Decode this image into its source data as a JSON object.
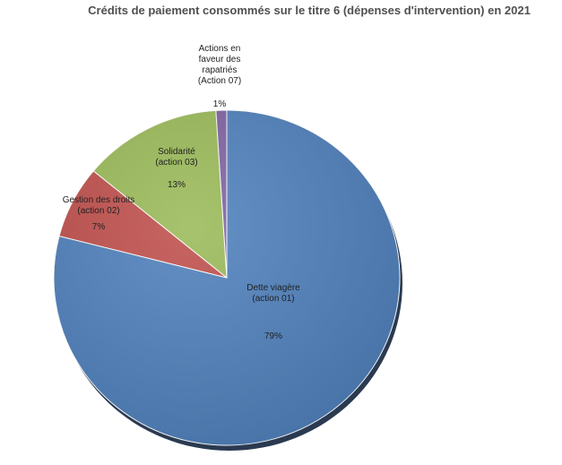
{
  "chart_data": {
    "type": "pie",
    "title": "Crédits de paiement consommés sur le titre 6 (dépenses d'intervention) en 2021",
    "categories": [
      "Dette viagère (action 01)",
      "Gestion des droits (action 02)",
      "Solidarité (action 03)",
      "Actions en faveur des rapatriés (Action 07)"
    ],
    "values": [
      79,
      7,
      13,
      1
    ],
    "value_labels": [
      "79%",
      "7%",
      "13%",
      "1%"
    ],
    "colors": [
      "#4f81bd",
      "#c0504d",
      "#9bbb59",
      "#8064a2"
    ]
  }
}
